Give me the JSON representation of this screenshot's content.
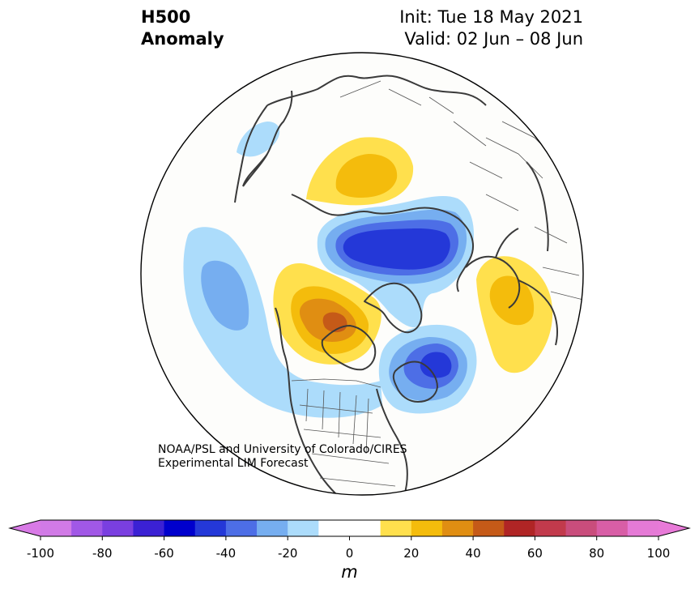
{
  "title": {
    "variable_line1": "H500",
    "variable_line2": "Anomaly",
    "init": "Init: Tue 18 May 2021",
    "valid": "Valid: 02 Jun – 08 Jun"
  },
  "credit": {
    "line1": "NOAA/PSL and University of Colorado/CIRES",
    "line2": "Experimental LIM Forecast"
  },
  "colorbar": {
    "unit": "m",
    "ticks": [
      "-100",
      "-80",
      "-60",
      "-40",
      "-20",
      "0",
      "20",
      "40",
      "60",
      "80",
      "100"
    ],
    "tick_values": [
      -100,
      -80,
      -60,
      -40,
      -20,
      0,
      20,
      40,
      60,
      80,
      100
    ],
    "range": [
      -100,
      100
    ],
    "bin_width": 10,
    "extend": "both",
    "colors": [
      "#d17ae6",
      "#a158e6",
      "#7a3fe0",
      "#3b21d4",
      "#0000cd",
      "#2438d8",
      "#4d6ee6",
      "#76aef0",
      "#acdcfb",
      "#ffffff",
      "#ffffff",
      "#ffe04d",
      "#f4bc0c",
      "#e08e12",
      "#c55a18",
      "#b02525",
      "#c23a4c",
      "#c94d7c",
      "#d85ea6",
      "#e57ad6"
    ],
    "under_color": "#d87ae6",
    "over_color": "#e87ad8"
  },
  "anomaly_centers": [
    {
      "region": "Arctic Siberia",
      "sign": "positive",
      "approx_max_m": 30
    },
    {
      "region": "North Pacific",
      "sign": "negative",
      "approx_min_m": -30
    },
    {
      "region": "Central Siberia",
      "sign": "negative",
      "approx_min_m": -60
    },
    {
      "region": "Alaska / Bering Sea",
      "sign": "positive",
      "approx_max_m": 50
    },
    {
      "region": "Europe",
      "sign": "positive",
      "approx_max_m": 30
    },
    {
      "region": "North Atlantic / Greenland",
      "sign": "negative",
      "approx_min_m": -60
    },
    {
      "region": "Kamchatka",
      "sign": "negative",
      "approx_min_m": -20
    }
  ]
}
